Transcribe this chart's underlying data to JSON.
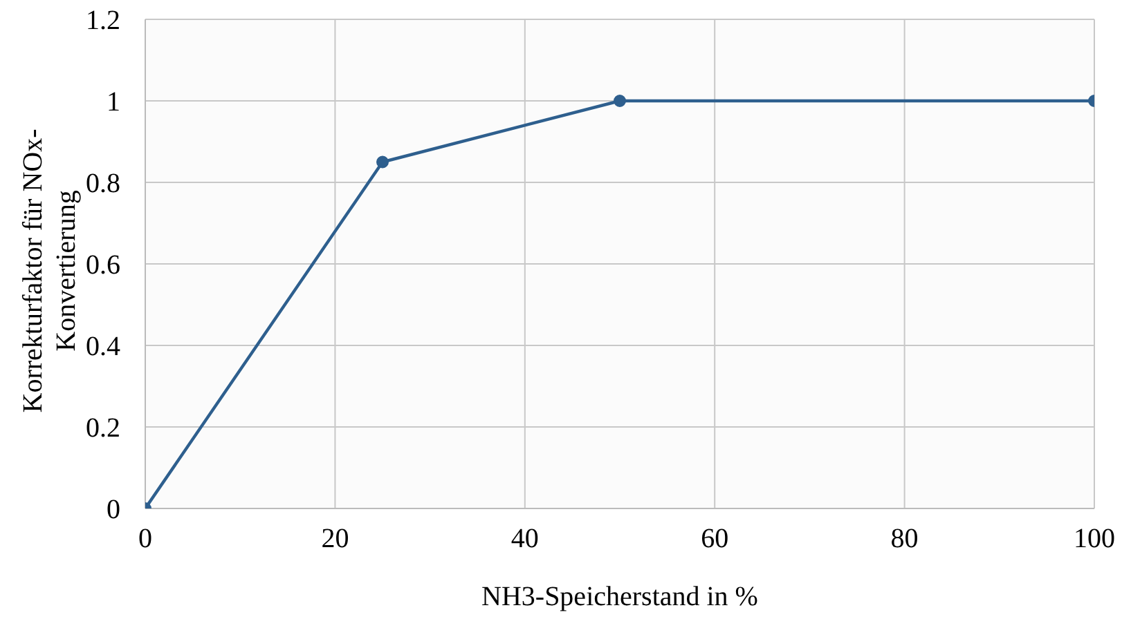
{
  "chart_data": {
    "type": "line",
    "xlabel": "NH3-Speicherstand in %",
    "ylabel": "Korrekturfaktor  für NOx-\nKonvertierung",
    "x": [
      0,
      25,
      50,
      100
    ],
    "series": [
      {
        "color": "#2e5f8e",
        "values": [
          0,
          0.85,
          1,
          1
        ]
      }
    ],
    "xlim": [
      0,
      100
    ],
    "xticks": [
      0,
      20,
      40,
      60,
      80,
      100
    ],
    "ylim": [
      0,
      1.2
    ],
    "yticks": [
      0,
      0.2,
      0.4,
      0.6,
      0.8,
      1,
      1.2
    ],
    "grid": true,
    "marker": "circle",
    "line_style": "solid",
    "legend": false
  }
}
